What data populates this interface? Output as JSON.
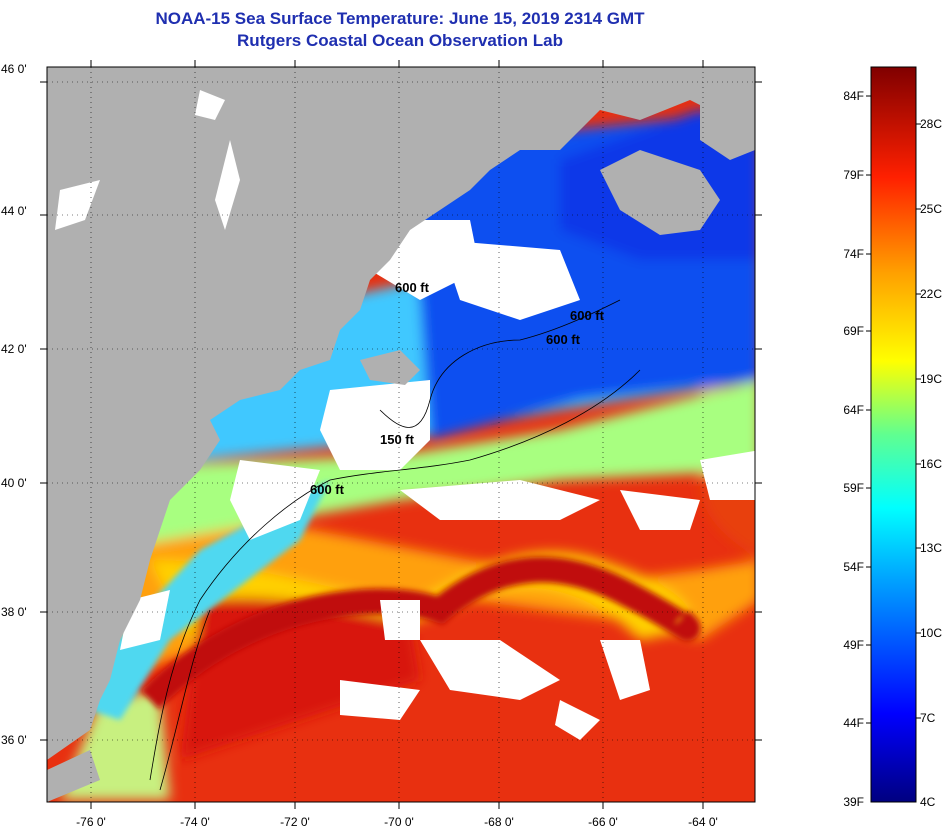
{
  "title": {
    "line1": "NOAA-15 Sea Surface Temperature:  June 15, 2019 2314 GMT",
    "line2": "Rutgers Coastal Ocean Observation Lab"
  },
  "map": {
    "latitude_labels": [
      "46 0'",
      "44 0'",
      "42 0'",
      "40 0'",
      "38 0'",
      "36 0'"
    ],
    "longitude_labels": [
      "-76 0'",
      "-74 0'",
      "-72 0'",
      "-70 0'",
      "-68 0'",
      "-66 0'",
      "-64 0'"
    ],
    "lat_range": [
      35,
      46
    ],
    "lon_range": [
      -77,
      -63
    ],
    "contour_labels": [
      "600 ft",
      "600 ft",
      "600 ft",
      "150 ft",
      "600 ft"
    ]
  },
  "colorbar": {
    "fahrenheit_labels": [
      "84F",
      "79F",
      "74F",
      "69F",
      "64F",
      "59F",
      "54F",
      "49F",
      "44F",
      "39F"
    ],
    "celsius_labels": [
      "28C",
      "25C",
      "22C",
      "19C",
      "16C",
      "13C",
      "10C",
      "7C",
      "4C"
    ]
  },
  "colors": {
    "land": "#b0b0b0",
    "cloud": "#ffffff",
    "title": "#1f2fb0",
    "scale_coldest": "#000080",
    "scale_warmest": "#800000"
  }
}
